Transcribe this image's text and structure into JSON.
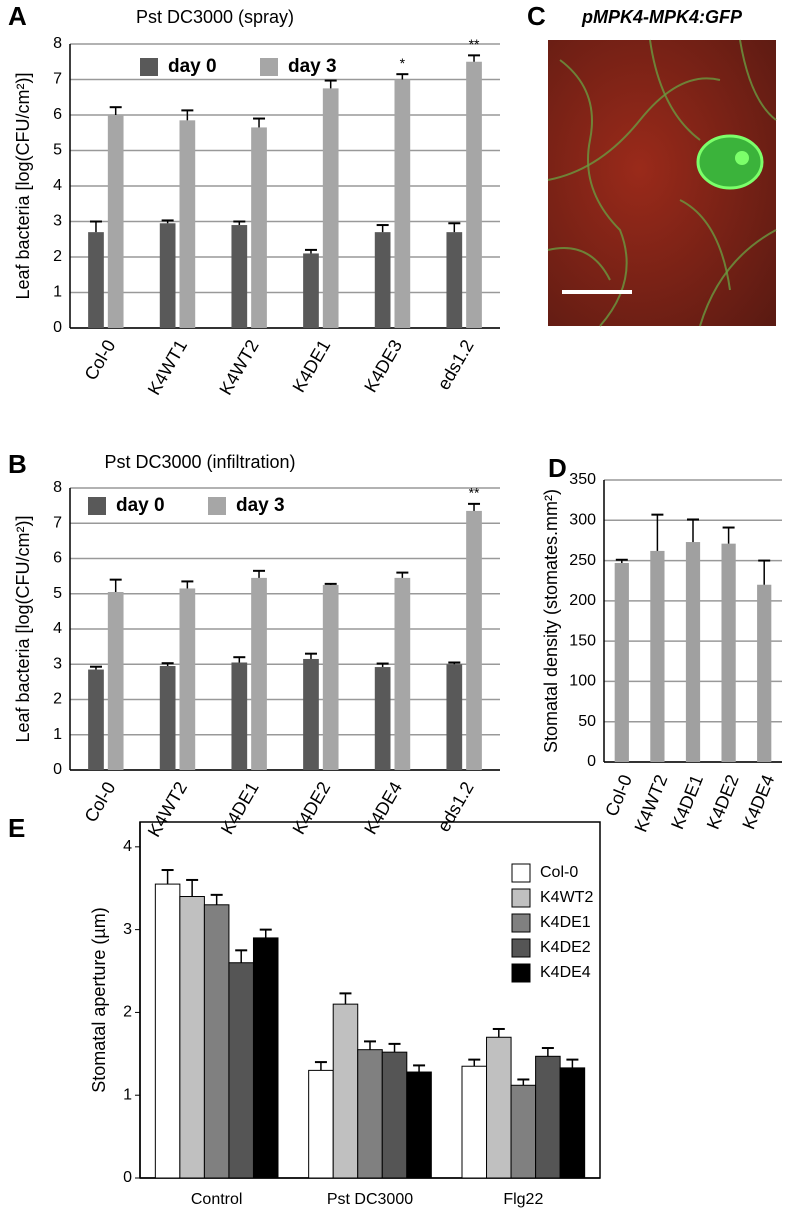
{
  "chart_data": [
    {
      "type": "bar",
      "panel": "A",
      "title": "Pst DC3000 (spray)",
      "ylabel": "Leaf bacteria [log(CFU/cm²)]",
      "categories": [
        "Col-0",
        "K4WT1",
        "K4WT2",
        "K4DE1",
        "K4DE3",
        "eds1.2"
      ],
      "series": [
        {
          "name": "day 0",
          "color": "#595959",
          "values": [
            2.7,
            2.95,
            2.9,
            2.1,
            2.7,
            2.7
          ],
          "errors": [
            0.3,
            0.08,
            0.1,
            0.1,
            0.2,
            0.25
          ]
        },
        {
          "name": "day 3",
          "color": "#a6a6a6",
          "values": [
            6.0,
            5.85,
            5.65,
            6.75,
            7.0,
            7.5
          ],
          "errors": [
            0.22,
            0.28,
            0.25,
            0.22,
            0.15,
            0.18
          ],
          "significance": [
            null,
            null,
            null,
            null,
            "*",
            "**"
          ]
        }
      ],
      "ylim": [
        0,
        8
      ],
      "yticks": [
        0,
        1,
        2,
        3,
        4,
        5,
        6,
        7,
        8
      ],
      "grid": true,
      "legend_position": "top"
    },
    {
      "type": "image",
      "panel": "C",
      "title": "pMPK4-MPK4:GFP"
    },
    {
      "type": "bar",
      "panel": "B",
      "title": "Pst DC3000 (infiltration)",
      "ylabel": "Leaf bacteria [log(CFU/cm²)]",
      "categories": [
        "Col-0",
        "K4WT2",
        "K4DE1",
        "K4DE2",
        "K4DE4",
        "eds1.2"
      ],
      "series": [
        {
          "name": "day 0",
          "color": "#595959",
          "values": [
            2.85,
            2.95,
            3.05,
            3.15,
            2.92,
            3.0
          ],
          "errors": [
            0.08,
            0.08,
            0.15,
            0.15,
            0.1,
            0.05
          ]
        },
        {
          "name": "day 3",
          "color": "#a6a6a6",
          "values": [
            5.05,
            5.15,
            5.45,
            5.25,
            5.45,
            7.35
          ],
          "errors": [
            0.35,
            0.2,
            0.2,
            0.03,
            0.15,
            0.2
          ],
          "significance": [
            null,
            null,
            null,
            null,
            null,
            "**"
          ]
        }
      ],
      "ylim": [
        0,
        8
      ],
      "yticks": [
        0,
        1,
        2,
        3,
        4,
        5,
        6,
        7,
        8
      ],
      "grid": true,
      "legend_position": "top"
    },
    {
      "type": "bar",
      "panel": "D",
      "ylabel": "Stomatal density (stomates.mm²)",
      "categories": [
        "Col-0",
        "K4WT2",
        "K4DE1",
        "K4DE2",
        "K4DE4"
      ],
      "values": [
        247,
        262,
        273,
        271,
        220
      ],
      "errors": [
        4,
        45,
        28,
        20,
        30
      ],
      "color": "#a0a0a0",
      "ylim": [
        0,
        350
      ],
      "yticks": [
        0,
        50,
        100,
        150,
        200,
        250,
        300,
        350
      ],
      "grid": true
    },
    {
      "type": "bar",
      "panel": "E",
      "ylabel": "Stomatal aperture (µm)",
      "categories": [
        "Control",
        "Pst DC3000",
        "Flg22"
      ],
      "series": [
        {
          "name": "Col-0",
          "color": "#ffffff",
          "values": [
            3.55,
            1.3,
            1.35
          ],
          "errors": [
            0.17,
            0.1,
            0.08
          ]
        },
        {
          "name": "K4WT2",
          "color": "#c0c0c0",
          "values": [
            3.4,
            2.1,
            1.7
          ],
          "errors": [
            0.2,
            0.13,
            0.1
          ]
        },
        {
          "name": "K4DE1",
          "color": "#808080",
          "values": [
            3.3,
            1.55,
            1.12
          ],
          "errors": [
            0.12,
            0.1,
            0.07
          ]
        },
        {
          "name": "K4DE2",
          "color": "#555555",
          "values": [
            2.6,
            1.52,
            1.47
          ],
          "errors": [
            0.15,
            0.1,
            0.1
          ]
        },
        {
          "name": "K4DE4",
          "color": "#000000",
          "values": [
            2.9,
            1.28,
            1.33
          ],
          "errors": [
            0.1,
            0.08,
            0.1
          ]
        }
      ],
      "ylim": [
        0,
        4.3
      ],
      "yticks": [
        0,
        1,
        2,
        3,
        4
      ],
      "grid": false,
      "frame": true,
      "legend_position": "top-right"
    }
  ]
}
